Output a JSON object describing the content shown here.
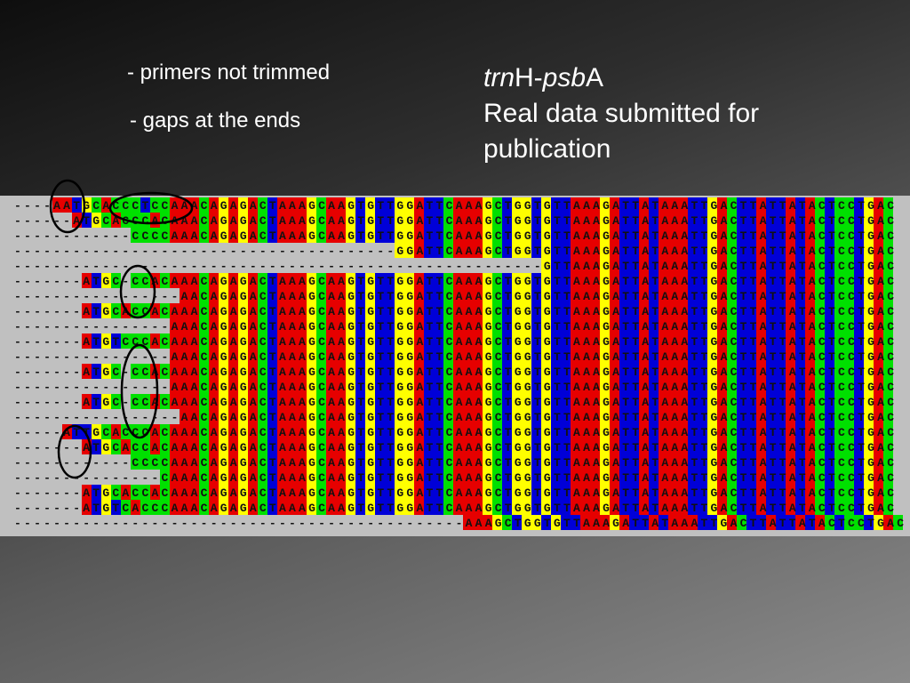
{
  "notes": [
    "- primers not trimmed",
    "- gaps at the ends"
  ],
  "title": {
    "parts": [
      "trn",
      "H-",
      "psb",
      "A"
    ],
    "subtitle": "Real data submitted for publication"
  },
  "alignment": {
    "rows": [
      "----AATGCACCCTCCAAACAGAGACTAAAGCAAGTGTTGGATTCAAAGCTGGTGTTAAAGATTATAAATTGACTTATTATACTCCTGAC",
      "------ATGCACCCACAAACAGAGACTAAAGCAAGTGTTGGATTCAAAGCTGGTGTTAAAGATTATAAATTGACTTATTATACTCCTGAC",
      "------------CCCCAAACAGAGACTAAAGCAAGTGTTGGATTCAAAGCTGGTGTTAAAGATTATAAATTGACTTATTATACTCCTGAC",
      "---------------------------------------GGATTCAAAGCTGGTGTTAAAGATTATAAATTGACTTATTATACTCCTGAC",
      "------------------------------------------------------GTTAAAGATTATAAATTGACTTATTATACTCCTGAC",
      "-------ATGC-CCACAAACAGAGACTAAAGCAAGTGTTGGATTCAAAGCTGGTGTTAAAGATTATAAATTGACTTATTATACTCCTGAC",
      "-----------------AACAGAGACTAAAGCAAGTGTTGGATTCAAAGCTGGTGTTAAAGATTATAAATTGACTTATTATACTCCTGAC",
      "-------ATGCACCACAAACAGAGACTAAAGCAAGTGTTGGATTCAAAGCTGGTGTTAAAGATTATAAATTGACTTATTATACTCCTGAC",
      "----------------AAACAGAGACTAAAGCAAGTGTTGGATTCAAAGCTGGTGTTAAAGATTATAAATTGACTTATTATACTCCTGAC",
      "-------ATGTCCCACAAACAGAGACTAAAGCAAGTGTTGGATTCAAAGCTGGTGTTAAAGATTATAAATTGACTTATTATACTCCTGAC",
      "----------------AAACAGAGACTAAAGCAAGTGTTGGATTCAAAGCTGGTGTTAAAGATTATAAATTGACTTATTATACTCCTGAC",
      "-------ATGC-CCACAAACAGAGACTAAAGCAAGTGTTGGATTCAAAGCTGGTGTTAAAGATTATAAATTGACTTATTATACTCCTGAC",
      "----------------AAACAGAGACTAAAGCAAGTGTTGGATTCAAAGCTGGTGTTAAAGATTATAAATTGACTTATTATACTCCTGAC",
      "-------ATGC-CCACAAACAGAGACTAAAGCAAGTGTTGGATTCAAAGCTGGTGTTAAAGATTATAAATTGACTTATTATACTCCTGAC",
      "-----------------AACAGAGACTAAAGCAAGTGTTGGATTCAAAGCTGGTGTTAAAGATTATAAATTGACTTATTATACTCCTGAC",
      "-----ATTGCACCCACAAACAGAGACTAAAGCAAGTGTTGGATTCAAAGCTGGTGTTAAAGATTATAAATTGACTTATTATACTCCTGAC",
      "-------ATGCACCACAAACAGAGACTAAAGCAAGTGTTGGATTCAAAGCTGGTGTTAAAGATTATAAATTGACTTATTATACTCCTGAC",
      "------------CCCCAAACAGAGACTAAAGCAAGTGTTGGATTCAAAGCTGGTGTTAAAGATTATAAATTGACTTATTATACTCCTGAC",
      "---------------CAAACAGAGACTAAAGCAAGTGTTGGATTCAAAGCTGGTGTTAAAGATTATAAATTGACTTATTATACTCCTGAC",
      "-------ATGCACCACAAACAGAGACTAAAGCAAGTGTTGGATTCAAAGCTGGTGTTAAAGATTATAAATTGACTTATTATACTCCTGAC",
      "-------ATGTCACCCAAACAGAGACTAAAGCAAGTGTTGGATTCAAAGCTGGTGTTAAAGATTATAAATTGACTTATTATACTCCTGAC",
      "----------------------------------------------AAAGCTGGTGTTAAAGATTATAAATTGACTTATTATACTCCTGAC"
    ]
  }
}
